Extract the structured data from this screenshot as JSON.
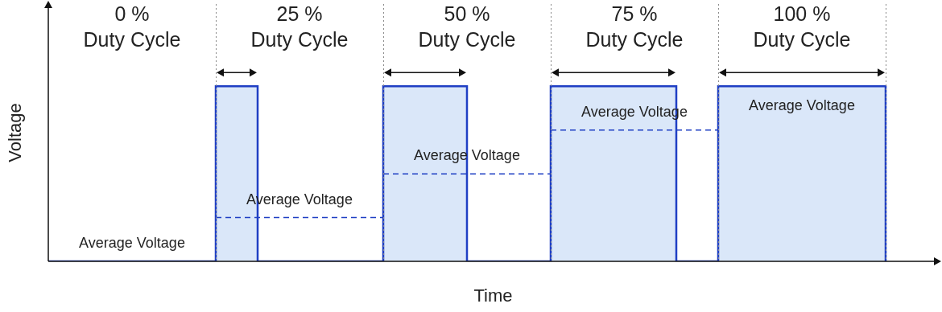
{
  "chart_data": {
    "type": "line",
    "x_label": "Time",
    "y_label": "Voltage",
    "xlim": [
      0,
      21.25
    ],
    "ylim": [
      0,
      1.47
    ],
    "grid": false,
    "tick_labels": false,
    "color": "#1f3fc4",
    "x": [
      0,
      4,
      4,
      5,
      5,
      8,
      8,
      10,
      10,
      12,
      12,
      15,
      15,
      16,
      16,
      20,
      20
    ],
    "values": [
      0,
      0,
      1,
      1,
      0,
      0,
      1,
      1,
      0,
      0,
      1,
      1,
      0,
      0,
      1,
      1,
      0
    ],
    "sections": [
      {
        "title": [
          "0 %",
          "Duty Cycle"
        ],
        "start": 0,
        "end": 4,
        "average": 0,
        "average_label": "Average Voltage"
      },
      {
        "title": [
          "25 %",
          "Duty Cycle"
        ],
        "start": 4,
        "end": 8,
        "average": 0.25,
        "average_label": "Average Voltage"
      },
      {
        "title": [
          "50 %",
          "Duty Cycle"
        ],
        "start": 8,
        "end": 12,
        "average": 0.5,
        "average_label": "Average Voltage"
      },
      {
        "title": [
          "75 %",
          "Duty Cycle"
        ],
        "start": 12,
        "end": 16,
        "average": 0.75,
        "average_label": "Average Voltage"
      },
      {
        "title": [
          "100 %",
          "Duty Cycle"
        ],
        "start": 16,
        "end": 20,
        "average": 1,
        "average_label": "Average Voltage"
      }
    ]
  }
}
